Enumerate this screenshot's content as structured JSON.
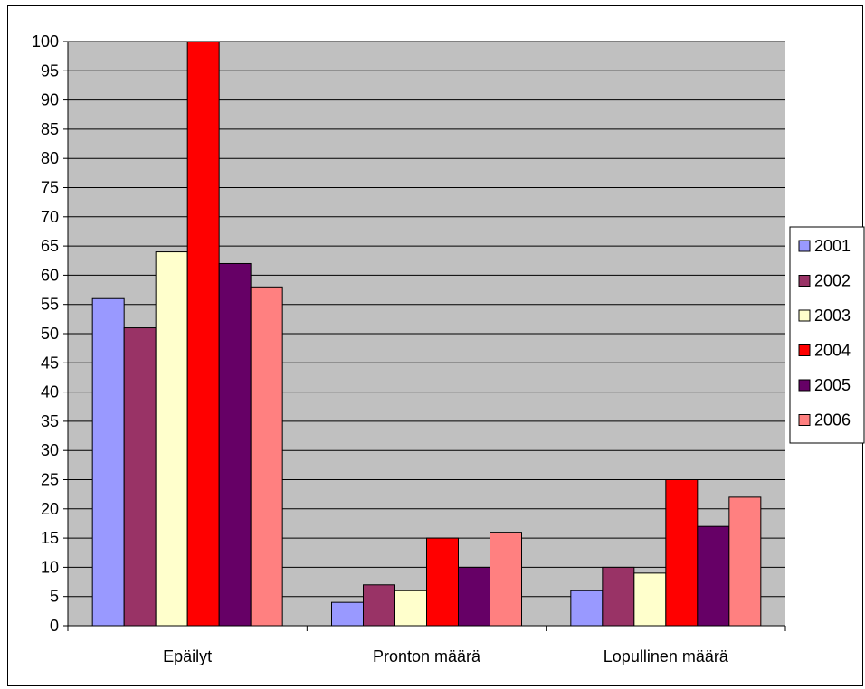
{
  "chart_data": {
    "type": "bar",
    "title": "",
    "xlabel": "",
    "ylabel": "",
    "categories": [
      "Epäilyt",
      "Pronton määrä",
      "Lopullinen määrä"
    ],
    "series": [
      {
        "name": "2001",
        "color": "#9999FF",
        "values": [
          56,
          4,
          6
        ]
      },
      {
        "name": "2002",
        "color": "#993366",
        "values": [
          51,
          7,
          10
        ]
      },
      {
        "name": "2003",
        "color": "#FFFFCC",
        "values": [
          64,
          6,
          9
        ]
      },
      {
        "name": "2004",
        "color": "#FF0000",
        "values": [
          100,
          15,
          25
        ]
      },
      {
        "name": "2005",
        "color": "#660066",
        "values": [
          62,
          10,
          17
        ]
      },
      {
        "name": "2006",
        "color": "#FF8080",
        "values": [
          58,
          16,
          22
        ]
      }
    ],
    "ylim": [
      0,
      100
    ],
    "ytick_step": 5,
    "grid": true,
    "plot_background": "#C0C0C0",
    "legend_position": "right"
  }
}
